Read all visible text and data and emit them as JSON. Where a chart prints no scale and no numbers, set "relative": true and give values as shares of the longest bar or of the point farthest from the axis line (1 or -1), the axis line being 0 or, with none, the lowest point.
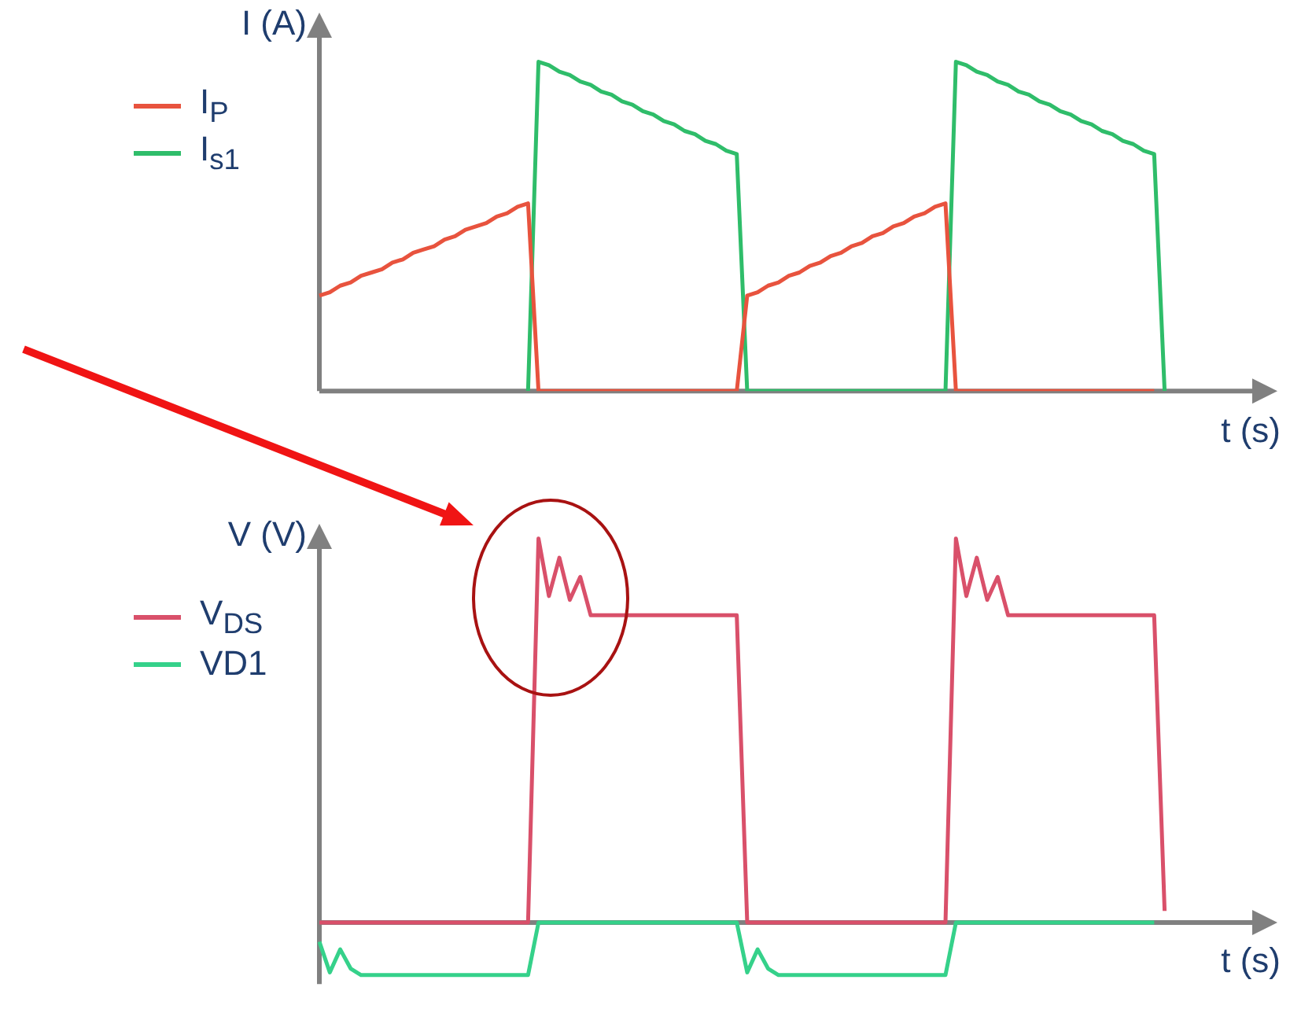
{
  "chart_data": [
    {
      "type": "line",
      "relative": true,
      "ylabel": "I (A)",
      "xlabel": "t (s)",
      "grid": false,
      "legend": "top left",
      "marker": "none",
      "line_style": "solid",
      "categories": [
        null,
        null,
        null,
        null,
        null,
        null,
        null,
        null,
        null,
        null,
        null,
        null,
        null,
        null,
        null,
        null,
        null,
        null,
        null,
        null,
        null,
        null,
        null,
        null,
        null,
        null,
        null,
        null,
        null,
        null,
        null,
        null,
        null,
        null,
        null,
        null,
        null,
        null,
        null,
        null,
        null,
        null,
        null,
        null,
        null,
        null,
        null,
        null,
        null,
        null,
        null,
        null,
        null,
        null,
        null,
        null,
        null,
        null,
        null,
        null,
        null,
        null,
        null,
        null,
        null,
        null,
        null,
        null,
        null,
        null,
        null,
        null,
        null,
        null,
        null,
        null,
        null,
        null,
        null,
        null,
        null,
        null,
        null,
        null,
        null,
        null,
        null,
        null,
        null,
        null,
        null
      ],
      "series": [
        {
          "name": "I$_{P}$",
          "color": "#e8533e",
          "values": [
            0.29,
            0.3,
            0.32,
            0.33,
            0.35,
            0.36,
            0.37,
            0.39,
            0.4,
            0.42,
            0.43,
            0.44,
            0.46,
            0.47,
            0.49,
            0.5,
            0.51,
            0.53,
            0.54,
            0.56,
            0.57,
            0,
            0,
            0,
            0,
            0,
            0,
            0,
            0,
            0,
            0,
            0,
            0,
            0,
            0,
            0,
            0,
            0,
            0,
            0,
            0,
            0.29,
            0.3,
            0.32,
            0.33,
            0.35,
            0.36,
            0.38,
            0.39,
            0.41,
            0.42,
            0.44,
            0.45,
            0.47,
            0.48,
            0.5,
            0.51,
            0.53,
            0.54,
            0.56,
            0.57,
            0,
            0,
            0,
            0,
            0,
            0,
            0,
            0,
            0,
            0,
            0,
            0,
            0,
            0,
            0,
            0,
            0,
            0,
            0,
            0,
            null,
            null,
            null,
            null,
            null,
            null,
            null,
            null,
            null,
            null
          ]
        },
        {
          "name": "I$_{s1}$",
          "color": "#2fbd6a",
          "values": [
            null,
            null,
            null,
            null,
            null,
            null,
            null,
            null,
            null,
            null,
            null,
            null,
            null,
            null,
            null,
            null,
            null,
            null,
            null,
            null,
            0,
            1.0,
            0.99,
            0.97,
            0.96,
            0.94,
            0.93,
            0.91,
            0.9,
            0.88,
            0.87,
            0.85,
            0.84,
            0.82,
            0.81,
            0.79,
            0.78,
            0.76,
            0.75,
            0.73,
            0.72,
            0,
            0,
            0,
            0,
            0,
            0,
            0,
            0,
            0,
            0,
            0,
            0,
            0,
            0,
            0,
            0,
            0,
            0,
            0,
            0,
            1.0,
            0.99,
            0.97,
            0.96,
            0.94,
            0.93,
            0.91,
            0.9,
            0.88,
            0.87,
            0.85,
            0.84,
            0.82,
            0.81,
            0.79,
            0.78,
            0.76,
            0.75,
            0.73,
            0.72,
            0,
            null,
            null,
            null,
            null,
            null,
            null,
            null,
            null,
            null
          ]
        }
      ]
    },
    {
      "type": "line",
      "relative": true,
      "ylabel": "V (V)",
      "xlabel": "t (s)",
      "grid": false,
      "legend": "top left",
      "marker": "none",
      "line_style": "solid",
      "categories": [
        null,
        null,
        null,
        null,
        null,
        null,
        null,
        null,
        null,
        null,
        null,
        null,
        null,
        null,
        null,
        null,
        null,
        null,
        null,
        null,
        null,
        null,
        null,
        null,
        null,
        null,
        null,
        null,
        null,
        null,
        null,
        null,
        null,
        null,
        null,
        null,
        null,
        null,
        null,
        null,
        null,
        null,
        null,
        null,
        null,
        null,
        null,
        null,
        null,
        null,
        null,
        null,
        null,
        null,
        null,
        null,
        null,
        null,
        null,
        null,
        null,
        null,
        null,
        null,
        null,
        null,
        null,
        null,
        null,
        null,
        null,
        null,
        null,
        null,
        null,
        null,
        null,
        null,
        null,
        null,
        null,
        null,
        null,
        null,
        null,
        null,
        null,
        null,
        null,
        null,
        null
      ],
      "series": [
        {
          "name": "V$_{DS}$",
          "color": "#d9506a",
          "values": [
            0,
            0,
            0,
            0,
            0,
            0,
            0,
            0,
            0,
            0,
            0,
            0,
            0,
            0,
            0,
            0,
            0,
            0,
            0,
            0,
            0,
            1,
            0.85,
            0.95,
            0.84,
            0.9,
            0.8,
            0.8,
            0.8,
            0.8,
            0.8,
            0.8,
            0.8,
            0.8,
            0.8,
            0.8,
            0.8,
            0.8,
            0.8,
            0.8,
            0.8,
            0,
            0,
            0,
            0,
            0,
            0,
            0,
            0,
            0,
            0,
            0,
            0,
            0,
            0,
            0,
            0,
            0,
            0,
            0,
            0,
            1,
            0.85,
            0.95,
            0.84,
            0.9,
            0.8,
            0.8,
            0.8,
            0.8,
            0.8,
            0.8,
            0.8,
            0.8,
            0.8,
            0.8,
            0.8,
            0.8,
            0.8,
            0.8,
            0.8,
            0.03,
            null,
            null,
            null,
            null,
            null,
            null,
            null,
            null,
            null
          ]
        },
        {
          "name": "VD1",
          "color": "#35d18a",
          "values": [
            -0.05,
            -0.13,
            -0.07,
            -0.12,
            -0.137,
            -0.137,
            -0.137,
            -0.137,
            -0.137,
            -0.137,
            -0.137,
            -0.137,
            -0.137,
            -0.137,
            -0.137,
            -0.137,
            -0.137,
            -0.137,
            -0.137,
            -0.137,
            -0.137,
            0,
            0,
            0,
            0,
            0,
            0,
            0,
            0,
            0,
            0,
            0,
            0,
            0,
            0,
            0,
            0,
            0,
            0,
            0,
            0,
            -0.13,
            -0.07,
            -0.12,
            -0.137,
            -0.137,
            -0.137,
            -0.137,
            -0.137,
            -0.137,
            -0.137,
            -0.137,
            -0.137,
            -0.137,
            -0.137,
            -0.137,
            -0.137,
            -0.137,
            -0.137,
            -0.137,
            -0.137,
            0,
            0,
            0,
            0,
            0,
            0,
            0,
            0,
            0,
            0,
            0,
            0,
            0,
            0,
            0,
            0,
            0,
            0,
            0,
            0,
            null,
            null,
            null,
            null,
            null,
            null,
            null,
            null,
            null,
            null
          ]
        }
      ]
    }
  ]
}
